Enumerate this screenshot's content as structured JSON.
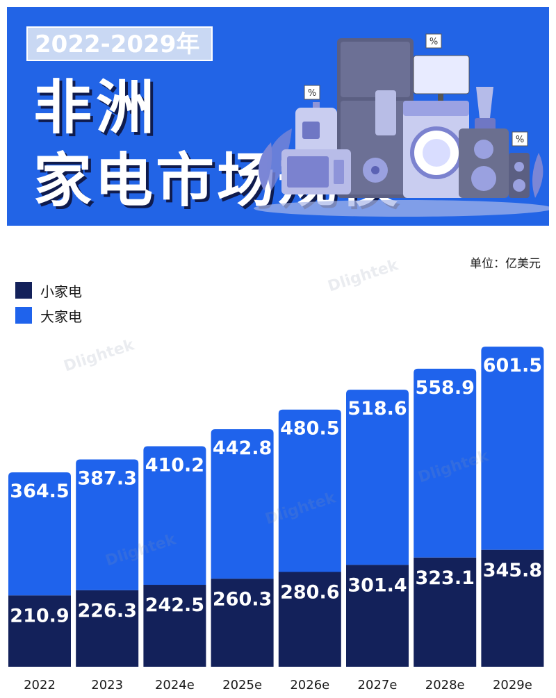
{
  "banner": {
    "year_range": "2022-2029年",
    "title_line1": "非洲",
    "title_line2": "家电市场规模"
  },
  "unit": "单位：亿美元",
  "watermark": "Dlightek",
  "colors": {
    "banner_bg": "#2264e6",
    "small_appliance": "#13215a",
    "large_appliance": "#1f63ec"
  },
  "legend": [
    {
      "label": "小家电",
      "color": "#13215a"
    },
    {
      "label": "大家电",
      "color": "#1f63ec"
    }
  ],
  "chart_data": {
    "type": "bar",
    "stacked": true,
    "categories": [
      "2022",
      "2023",
      "2024e",
      "2025e",
      "2026e",
      "2027e",
      "2028e",
      "2029e"
    ],
    "series": [
      {
        "name": "小家电",
        "values": [
          210.9,
          226.3,
          242.5,
          260.3,
          280.6,
          301.4,
          323.1,
          345.8
        ],
        "color": "#13215a"
      },
      {
        "name": "大家电",
        "values": [
          364.5,
          387.3,
          410.2,
          442.8,
          480.5,
          518.6,
          558.9,
          601.5
        ],
        "color": "#1f63ec"
      }
    ],
    "xlabel": "",
    "ylabel": "",
    "grid": false,
    "legend_position": "top-left"
  }
}
